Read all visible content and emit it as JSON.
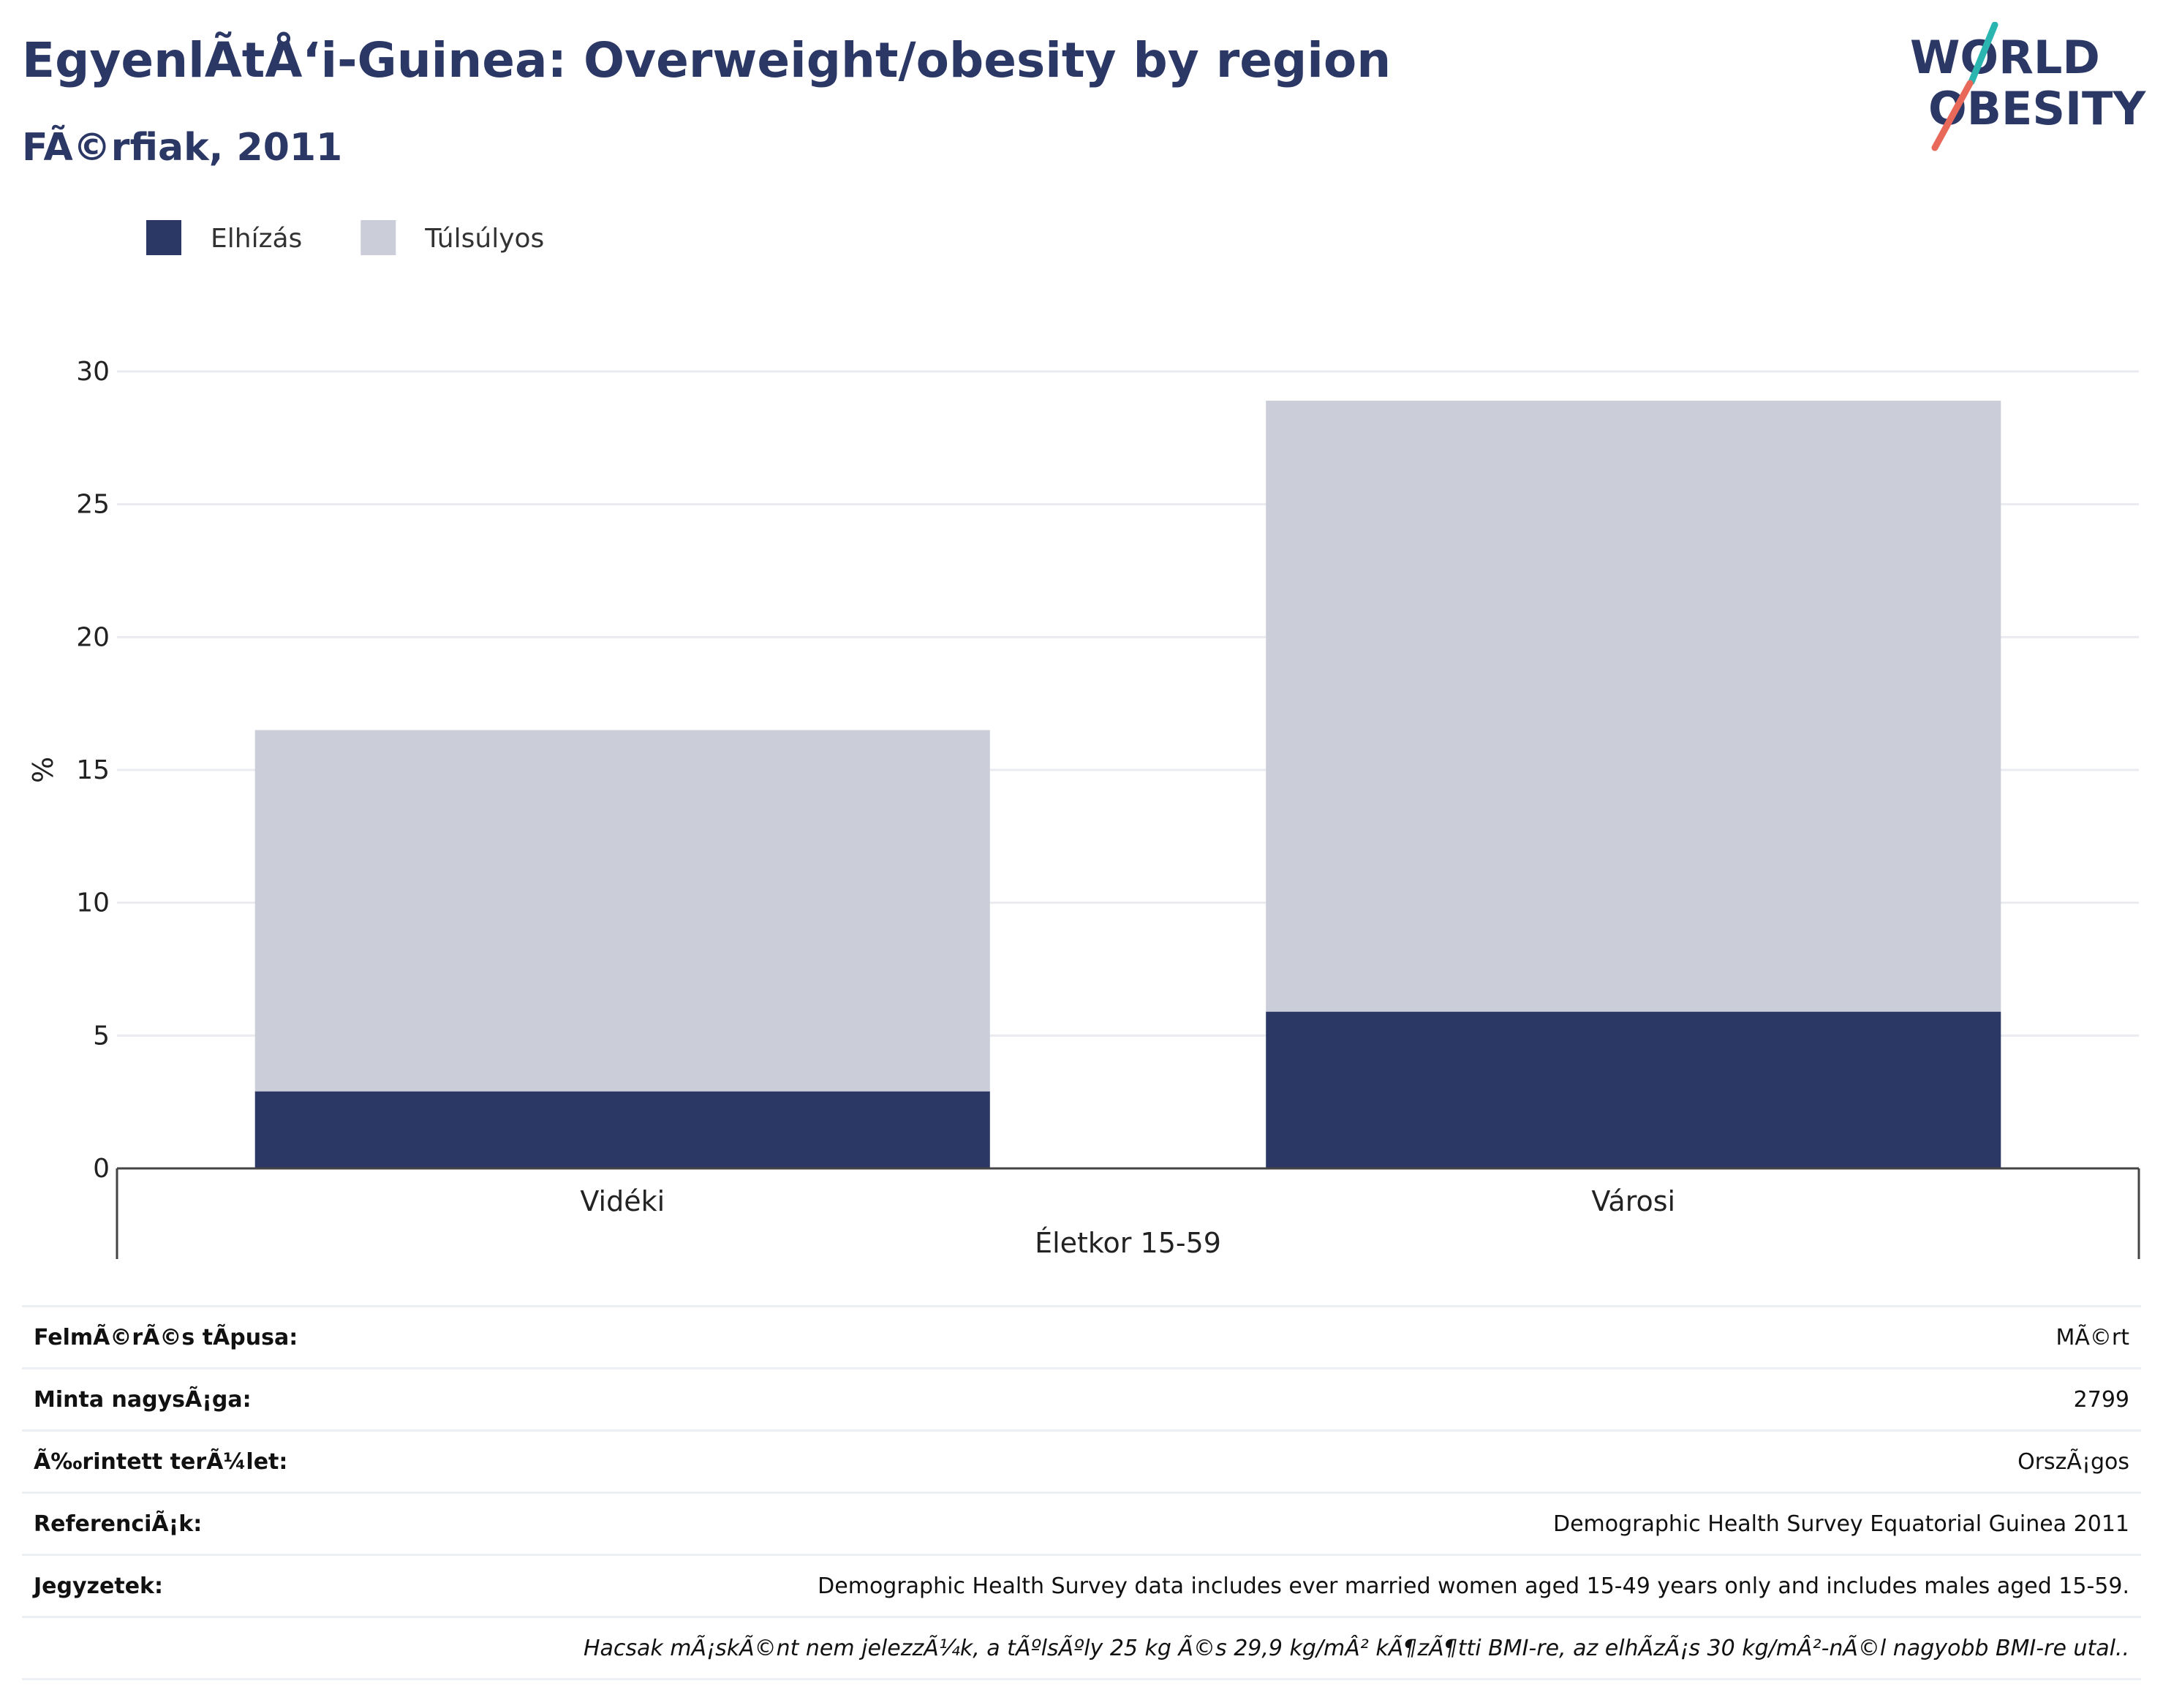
{
  "page": {
    "title": "EgyenlÃtÅ‘i-Guinea: Overweight/obesity by region",
    "subtitle": "FÃ©rfiak, 2011"
  },
  "logo": {
    "line1": "WORLD",
    "line2": "OBESITY",
    "colors": {
      "text": "#2b3765",
      "slash_teal": "#2ab5b0",
      "slash_coral": "#e8685a"
    }
  },
  "chart_data": {
    "type": "bar",
    "stacked": true,
    "categories": [
      "Vidéki",
      "Városi"
    ],
    "series": [
      {
        "name": "Elhízás",
        "values": [
          2.9,
          5.9
        ],
        "color": "#2b3765"
      },
      {
        "name": "Túlsúlyos",
        "values": [
          13.6,
          23.0
        ],
        "color": "#cbcdd9"
      }
    ],
    "xlabel": "Életkor 15-59",
    "ylabel": "%",
    "ylim": [
      0,
      30
    ],
    "yticks": [
      0,
      5,
      10,
      15,
      20,
      25,
      30
    ],
    "grid": true,
    "legend_position": "top-left"
  },
  "info": {
    "rows": [
      {
        "label": "FelmÃ©rÃ©s tÃpusa:",
        "value": "MÃ©rt"
      },
      {
        "label": "Minta nagysÃ¡ga:",
        "value": "2799"
      },
      {
        "label": "Ã‰rintett terÃ¼let:",
        "value": "OrszÃ¡gos"
      },
      {
        "label": "ReferenciÃ¡k:",
        "value": "Demographic Health Survey Equatorial Guinea 2011"
      },
      {
        "label": "Jegyzetek:",
        "value": "Demographic Health Survey data includes ever married women aged 15-49 years only and includes males aged 15-59."
      }
    ],
    "note": "Hacsak mÃ¡skÃ©nt nem jelezzÃ¼k, a tÃºlsÃºly 25 kg Ã©s 29,9 kg/mÂ² kÃ¶zÃ¶tti BMI-re, az elhÃ­zÃ¡s 30 kg/mÂ²-nÃ©l nagyobb BMI-re utal.."
  }
}
